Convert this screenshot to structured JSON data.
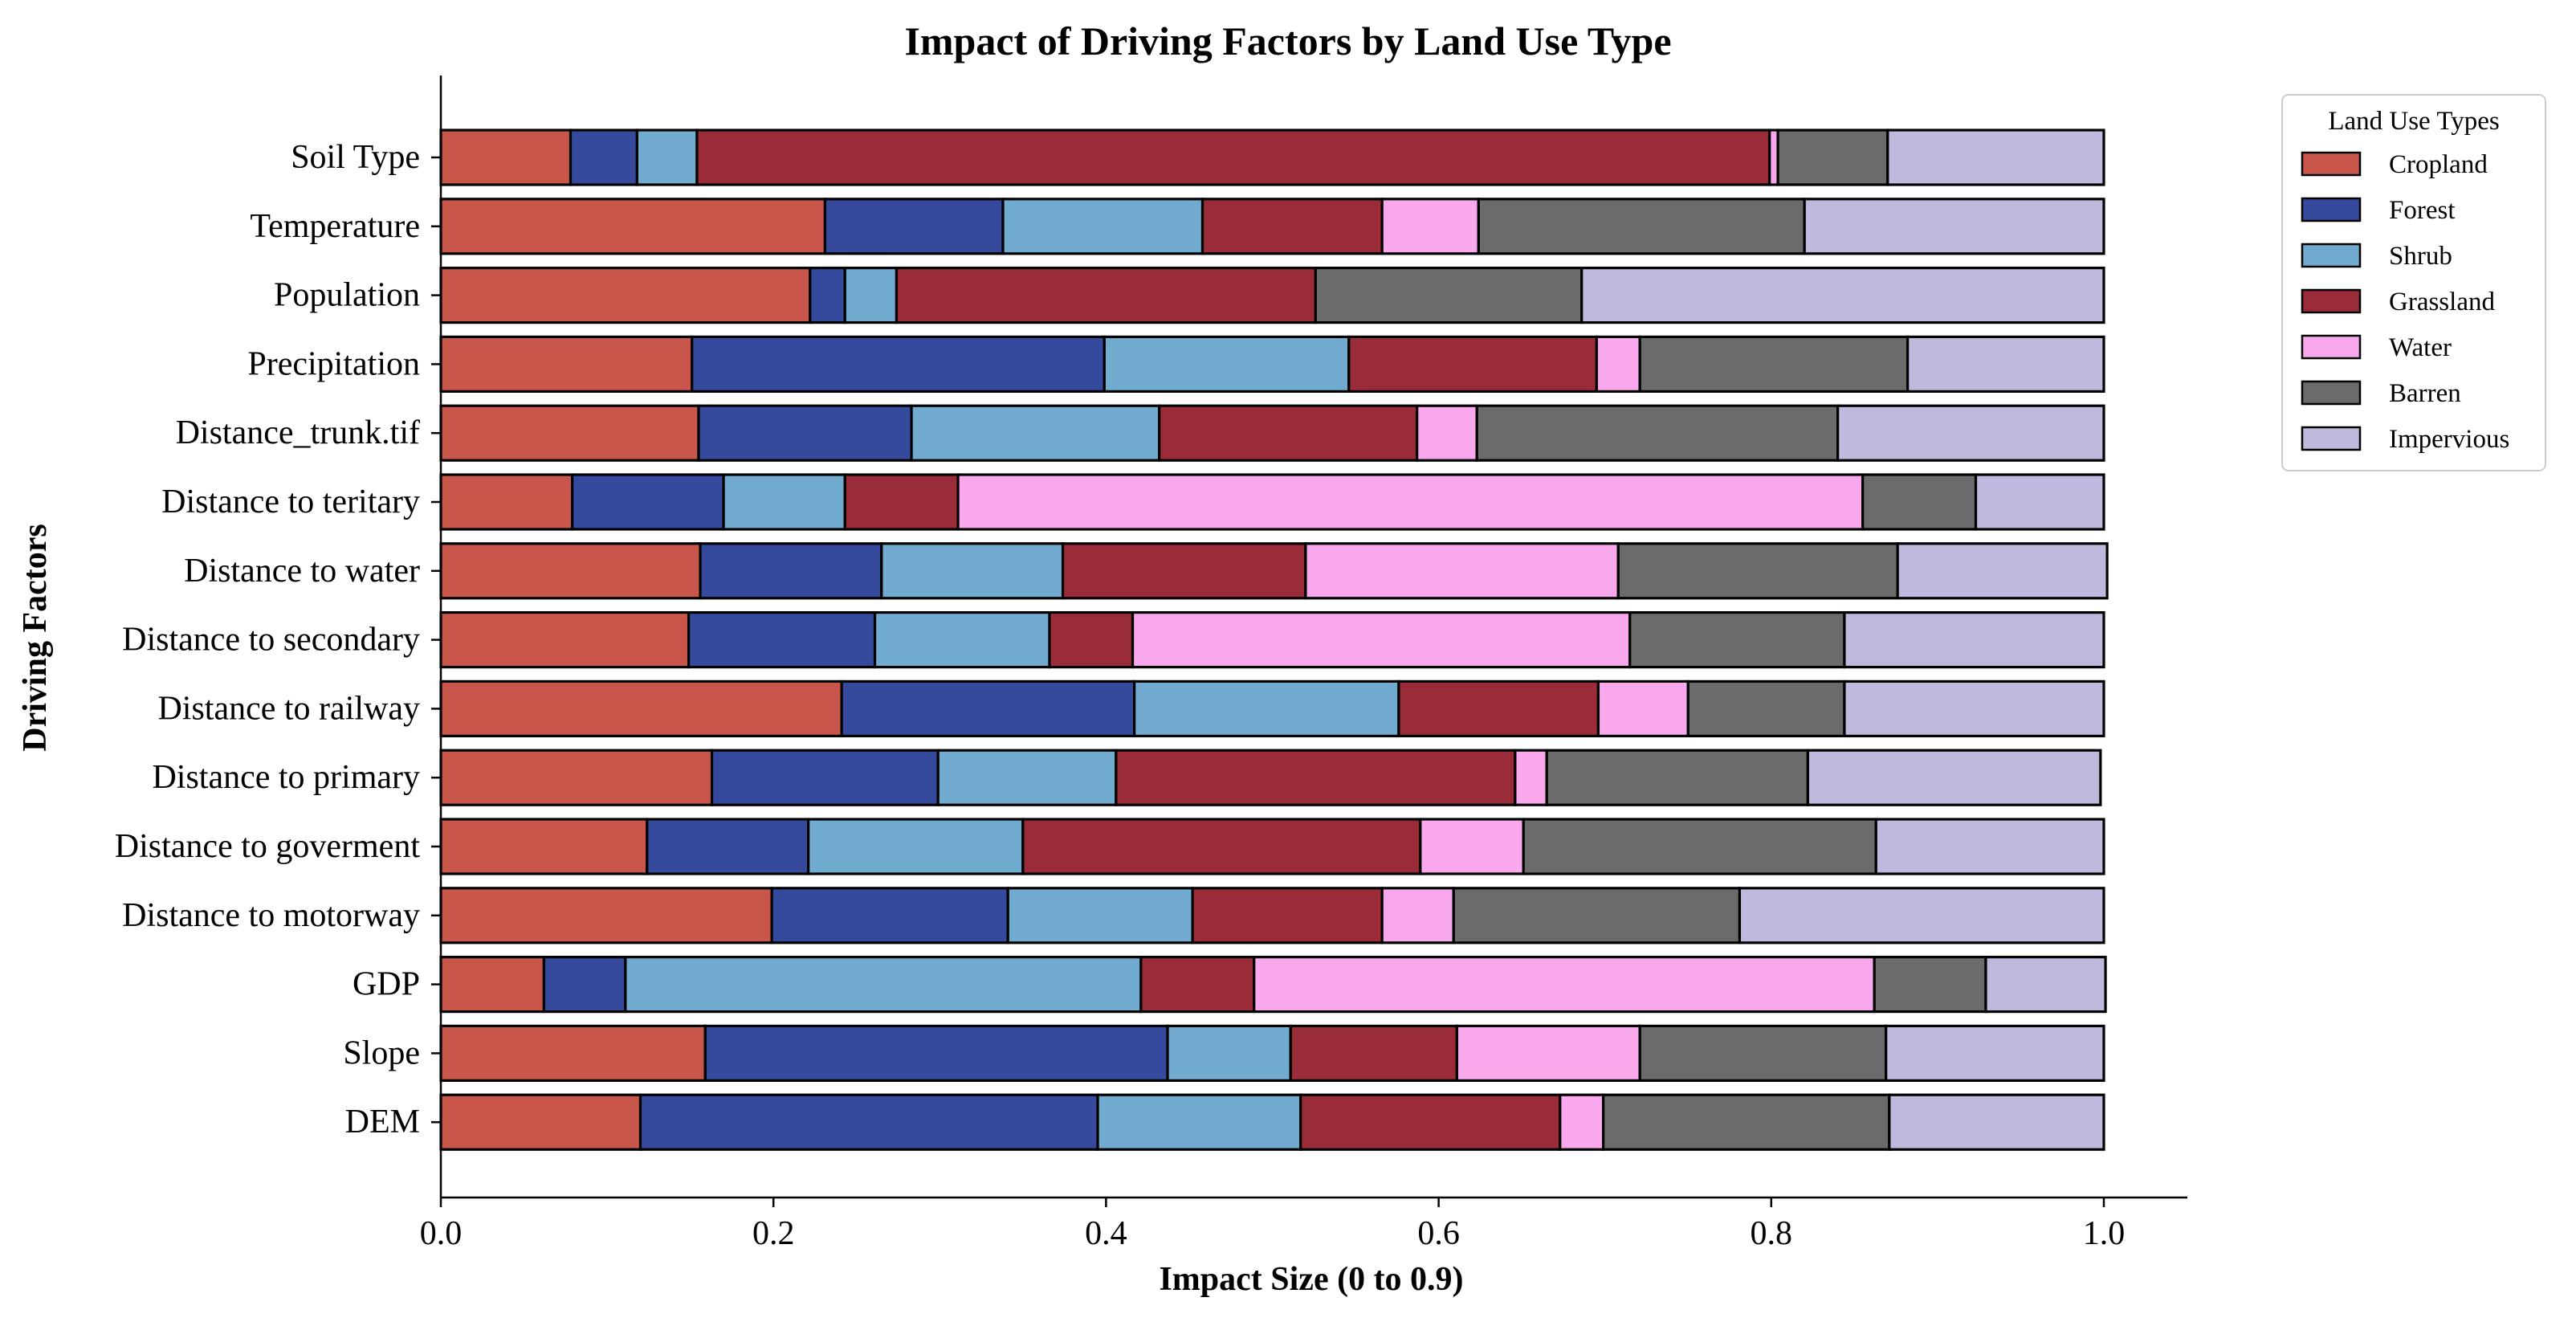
{
  "chart_data": {
    "type": "bar",
    "orientation": "horizontal",
    "stacked": true,
    "title": "Impact of Driving Factors by Land Use Type",
    "xlabel": "Impact Size (0 to 0.9)",
    "ylabel": "Driving Factors",
    "xlim": [
      0,
      1.0
    ],
    "xticks": [
      "0.0",
      "0.2",
      "0.4",
      "0.6",
      "0.8",
      "1.0"
    ],
    "grid": false,
    "legend": {
      "title": "Land Use Types",
      "position": "top-right, outside plot"
    },
    "categories": [
      "Soil Type",
      "Temperature",
      "Population",
      "Precipitation",
      "Distance_trunk.tif",
      "Distance to teritary",
      "Distance to water",
      "Distance to secondary",
      "Distance to railway",
      "Distance to primary",
      "Distance to goverment",
      "Distance to motorway",
      "GDP",
      "Slope",
      "DEM"
    ],
    "series": [
      {
        "name": "Cropland",
        "color": "#c8564a",
        "values": [
          0.078,
          0.231,
          0.222,
          0.151,
          0.155,
          0.079,
          0.156,
          0.149,
          0.241,
          0.163,
          0.124,
          0.199,
          0.062,
          0.159,
          0.12
        ]
      },
      {
        "name": "Forest",
        "color": "#354a9c",
        "values": [
          0.04,
          0.107,
          0.021,
          0.248,
          0.128,
          0.091,
          0.109,
          0.112,
          0.176,
          0.136,
          0.097,
          0.142,
          0.049,
          0.278,
          0.275
        ]
      },
      {
        "name": "Shrub",
        "color": "#72abd0",
        "values": [
          0.036,
          0.12,
          0.031,
          0.147,
          0.149,
          0.073,
          0.109,
          0.105,
          0.159,
          0.107,
          0.129,
          0.111,
          0.31,
          0.074,
          0.122
        ]
      },
      {
        "name": "Grassland",
        "color": "#9a2b38",
        "values": [
          0.645,
          0.108,
          0.252,
          0.149,
          0.155,
          0.068,
          0.146,
          0.05,
          0.12,
          0.24,
          0.239,
          0.114,
          0.068,
          0.1,
          0.156
        ]
      },
      {
        "name": "Water",
        "color": "#f9a8ee",
        "values": [
          0.005,
          0.058,
          0.0,
          0.026,
          0.036,
          0.544,
          0.188,
          0.299,
          0.054,
          0.019,
          0.062,
          0.043,
          0.373,
          0.11,
          0.026
        ]
      },
      {
        "name": "Barren",
        "color": "#6b6b6b",
        "values": [
          0.066,
          0.196,
          0.16,
          0.161,
          0.217,
          0.068,
          0.168,
          0.129,
          0.094,
          0.157,
          0.212,
          0.172,
          0.067,
          0.148,
          0.172
        ]
      },
      {
        "name": "Impervious",
        "color": "#bebadd",
        "values": [
          0.13,
          0.18,
          0.314,
          0.118,
          0.16,
          0.077,
          0.126,
          0.156,
          0.156,
          0.176,
          0.137,
          0.219,
          0.072,
          0.131,
          0.129
        ]
      }
    ]
  }
}
